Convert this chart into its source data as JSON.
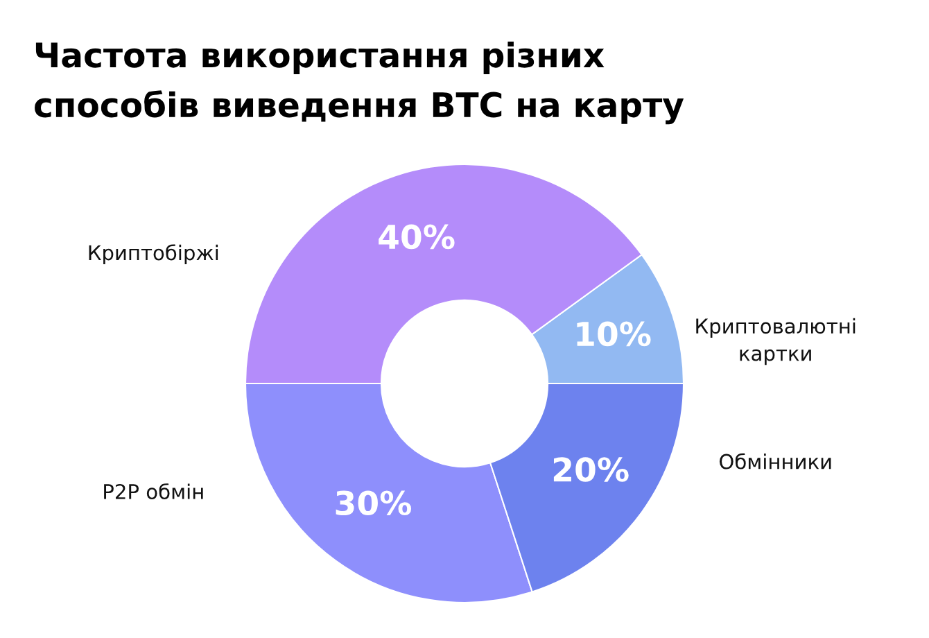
{
  "chart_data": {
    "type": "donut",
    "title": "Частота використання різних\nспособів виведення BTC на карту",
    "categories": [
      "Криптовалютні\nкартки",
      "Криптобіржі",
      "P2P обмін",
      "Обмінники"
    ],
    "values": [
      10,
      40,
      30,
      20
    ],
    "value_labels": [
      "10%",
      "40%",
      "30%",
      "20%"
    ],
    "colors": [
      "#92b9f2",
      "#b48cfa",
      "#8e8ffc",
      "#6d82ee"
    ]
  }
}
